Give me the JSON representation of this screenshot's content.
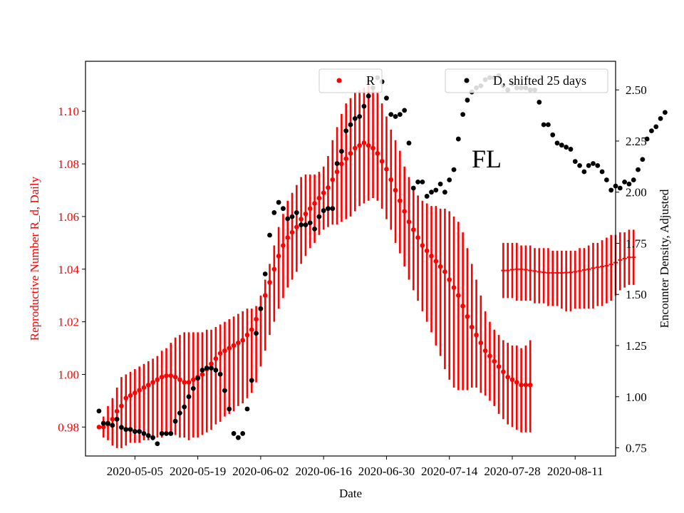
{
  "chart_data": {
    "type": "scatter",
    "annotation": "FL",
    "xlabel": "Date",
    "ylabel_left": "Reproductive Number R_d, Daily",
    "ylabel_right": "Encounter Density, Adjusted",
    "x_ticks": [
      "2020-05-05",
      "2020-05-19",
      "2020-06-02",
      "2020-06-16",
      "2020-06-30",
      "2020-07-14",
      "2020-07-28",
      "2020-08-11"
    ],
    "x_start": "2020-04-27",
    "x_lim": [
      "2020-04-24",
      "2020-08-20"
    ],
    "y_left_lim": [
      0.969,
      1.119
    ],
    "y_left_ticks": [
      0.98,
      1.0,
      1.02,
      1.04,
      1.06,
      1.08,
      1.1
    ],
    "y_left_tick_labels": [
      "0.98",
      "1.00",
      "1.02",
      "1.04",
      "1.06",
      "1.08",
      "1.10"
    ],
    "y_right_lim": [
      0.71,
      2.64
    ],
    "y_right_ticks": [
      0.75,
      1.0,
      1.25,
      1.5,
      1.75,
      2.0,
      2.25,
      2.5
    ],
    "y_right_tick_labels": [
      "0.75",
      "1.00",
      "1.25",
      "1.50",
      "1.75",
      "2.00",
      "2.25",
      "2.50"
    ],
    "grid": false,
    "legend_R": {
      "label": "R",
      "placement": "top-center"
    },
    "legend_D": {
      "label": "D, shifted 25 days",
      "placement": "top-right"
    },
    "colors": {
      "R": "#ff0000",
      "D": "#000000",
      "left_axis": "#ff0000",
      "right_axis": "#000000"
    },
    "series": [
      {
        "name": "R",
        "axis": "left",
        "marker": "dot",
        "x_start": "2020-04-27",
        "values": [
          0.98,
          0.98,
          0.981,
          0.983,
          0.986,
          0.988,
          0.991,
          0.992,
          0.993,
          0.994,
          0.995,
          0.996,
          0.997,
          0.998,
          0.999,
          0.9995,
          0.9995,
          0.999,
          0.998,
          0.997,
          0.997,
          0.998,
          0.999,
          1.0,
          1.002,
          1.004,
          1.006,
          1.008,
          1.009,
          1.01,
          1.011,
          1.012,
          1.013,
          1.015,
          1.017,
          1.021,
          1.025,
          1.03,
          1.035,
          1.04,
          1.045,
          1.049,
          1.052,
          1.054,
          1.056,
          1.059,
          1.061,
          1.063,
          1.065,
          1.067,
          1.069,
          1.071,
          1.074,
          1.077,
          1.08,
          1.082,
          1.084,
          1.086,
          1.087,
          1.088,
          1.087,
          1.086,
          1.084,
          1.081,
          1.078,
          1.074,
          1.07,
          1.066,
          1.062,
          1.058,
          1.055,
          1.052,
          1.049,
          1.047,
          1.045,
          1.043,
          1.041,
          1.039,
          1.036,
          1.033,
          1.03,
          1.026,
          1.022,
          1.018,
          1.015,
          1.012,
          1.009,
          1.007,
          1.005,
          1.003,
          1.001,
          0.999,
          0.998,
          0.997,
          0.996,
          0.996,
          0.996
        ],
        "err_low": [
          0.98,
          0.976,
          0.975,
          0.973,
          0.972,
          0.972,
          0.973,
          0.974,
          0.974,
          0.974,
          0.975,
          0.975,
          0.975,
          0.976,
          0.976,
          0.977,
          0.977,
          0.977,
          0.976,
          0.976,
          0.975,
          0.976,
          0.976,
          0.977,
          0.978,
          0.979,
          0.981,
          0.982,
          0.984,
          0.985,
          0.986,
          0.988,
          0.989,
          0.991,
          0.993,
          0.997,
          1.003,
          1.009,
          1.015,
          1.02,
          1.025,
          1.029,
          1.033,
          1.036,
          1.039,
          1.042,
          1.045,
          1.048,
          1.05,
          1.053,
          1.055,
          1.056,
          1.057,
          1.057,
          1.058,
          1.059,
          1.06,
          1.062,
          1.064,
          1.065,
          1.066,
          1.067,
          1.066,
          1.063,
          1.059,
          1.055,
          1.05,
          1.046,
          1.041,
          1.036,
          1.032,
          1.028,
          1.024,
          1.02,
          1.016,
          1.011,
          1.007,
          1.002,
          0.998,
          0.995,
          0.994,
          0.994,
          0.994,
          0.995,
          0.995,
          0.993,
          0.992,
          0.99,
          0.988,
          0.985,
          0.983,
          0.981,
          0.98,
          0.979,
          0.978,
          0.978,
          0.978
        ],
        "err_high": [
          0.98,
          0.984,
          0.988,
          0.991,
          0.995,
          0.999,
          1.0,
          1.001,
          1.002,
          1.003,
          1.004,
          1.005,
          1.006,
          1.007,
          1.009,
          1.01,
          1.012,
          1.014,
          1.015,
          1.016,
          1.016,
          1.016,
          1.016,
          1.016,
          1.017,
          1.017,
          1.018,
          1.019,
          1.02,
          1.021,
          1.022,
          1.023,
          1.024,
          1.025,
          1.025,
          1.026,
          1.03,
          1.036,
          1.042,
          1.049,
          1.056,
          1.061,
          1.066,
          1.069,
          1.072,
          1.075,
          1.076,
          1.076,
          1.076,
          1.077,
          1.079,
          1.083,
          1.089,
          1.094,
          1.099,
          1.103,
          1.105,
          1.107,
          1.108,
          1.109,
          1.11,
          1.109,
          1.107,
          1.103,
          1.098,
          1.093,
          1.089,
          1.085,
          1.079,
          1.075,
          1.071,
          1.068,
          1.066,
          1.065,
          1.064,
          1.064,
          1.063,
          1.063,
          1.062,
          1.06,
          1.058,
          1.054,
          1.048,
          1.042,
          1.036,
          1.03,
          1.024,
          1.02,
          1.017,
          1.015,
          1.013,
          1.012,
          1.011,
          1.011,
          1.01,
          1.011,
          1.013
        ]
      },
      {
        "name": "R",
        "axis": "left",
        "marker": "hline",
        "x_start": "2020-07-26",
        "values": [
          1.0395,
          1.0395,
          1.0398,
          1.04,
          1.04,
          1.0398,
          1.0395,
          1.0393,
          1.039,
          1.0388,
          1.0386,
          1.0386,
          1.0386,
          1.0386,
          1.0387,
          1.0388,
          1.039,
          1.0393,
          1.0397,
          1.04,
          1.0404,
          1.0407,
          1.041,
          1.0413,
          1.0418,
          1.0425,
          1.0435,
          1.044,
          1.0445,
          1.0445
        ],
        "err_low": [
          1.029,
          1.029,
          1.029,
          1.028,
          1.028,
          1.028,
          1.028,
          1.027,
          1.027,
          1.027,
          1.026,
          1.026,
          1.026,
          1.025,
          1.024,
          1.024,
          1.025,
          1.025,
          1.025,
          1.025,
          1.025,
          1.026,
          1.026,
          1.027,
          1.028,
          1.03,
          1.032,
          1.033,
          1.034,
          1.034
        ],
        "err_high": [
          1.05,
          1.05,
          1.05,
          1.05,
          1.049,
          1.049,
          1.049,
          1.048,
          1.048,
          1.048,
          1.048,
          1.047,
          1.047,
          1.047,
          1.047,
          1.047,
          1.047,
          1.048,
          1.048,
          1.049,
          1.05,
          1.05,
          1.051,
          1.052,
          1.053,
          1.053,
          1.054,
          1.054,
          1.055,
          1.055
        ]
      },
      {
        "name": "D, shifted 25 days",
        "axis": "right",
        "marker": "dot",
        "x_start": "2020-04-27",
        "values": [
          0.93,
          0.87,
          0.87,
          0.86,
          0.89,
          0.85,
          0.84,
          0.84,
          0.83,
          0.83,
          0.82,
          0.81,
          0.8,
          0.77,
          0.82,
          0.82,
          0.82,
          0.88,
          0.92,
          0.95,
          1.0,
          1.04,
          1.09,
          1.13,
          1.14,
          1.14,
          1.13,
          1.11,
          1.03,
          0.94,
          0.82,
          0.8,
          0.82,
          0.94,
          1.08,
          1.31,
          1.43,
          1.6,
          1.79,
          1.9,
          1.95,
          1.92,
          1.87,
          1.88,
          1.9,
          1.84,
          1.84,
          1.85,
          1.82,
          1.88,
          1.91,
          1.92,
          1.92,
          2.14,
          2.2,
          2.3,
          2.33,
          2.36,
          2.37,
          2.42,
          2.47,
          2.51,
          2.56,
          2.54,
          2.46,
          2.38,
          2.37,
          2.38,
          2.4,
          2.24,
          2.02,
          2.05,
          2.05,
          1.98,
          2.0,
          2.01,
          2.04,
          2.0,
          2.06,
          2.11,
          2.26,
          2.38,
          2.45,
          2.49,
          2.51,
          2.52,
          2.55,
          2.56,
          2.56,
          2.57,
          2.52,
          2.5,
          2.53,
          2.51,
          2.51,
          2.51,
          2.5,
          2.5,
          2.44,
          2.33,
          2.33,
          2.28,
          2.24,
          2.23,
          2.22,
          2.21,
          2.15,
          2.13,
          2.1,
          2.13,
          2.14,
          2.13,
          2.1,
          2.06,
          2.01,
          2.03,
          2.02,
          2.05,
          2.04,
          2.06,
          2.11,
          2.16,
          2.26,
          2.3,
          2.32,
          2.36,
          2.39
        ]
      }
    ]
  }
}
